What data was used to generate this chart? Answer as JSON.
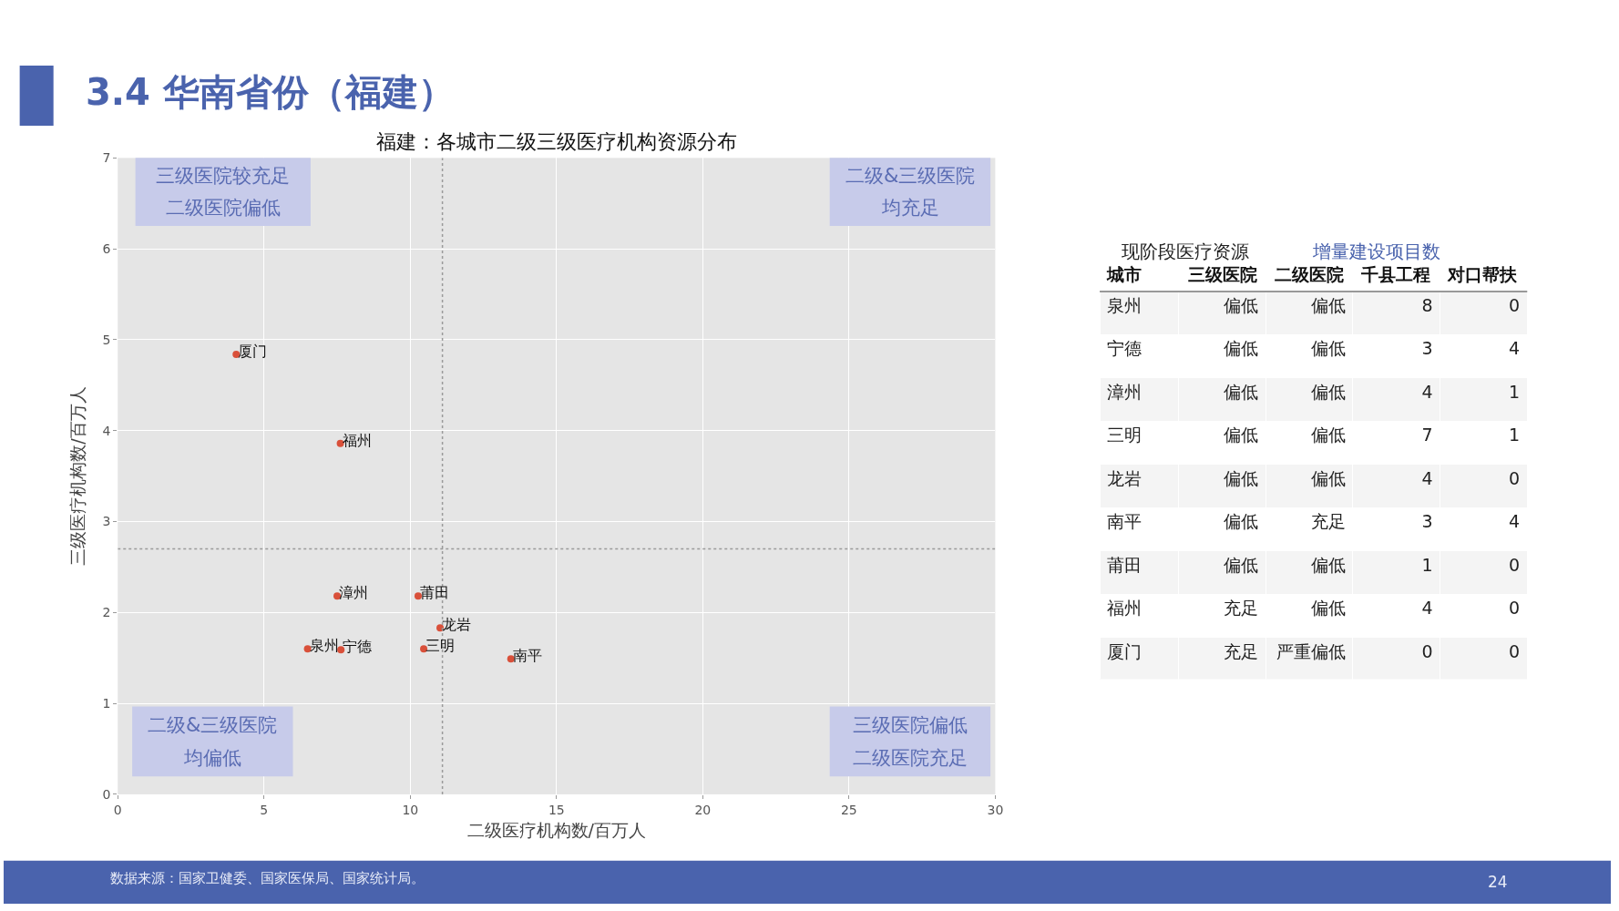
{
  "chart_data": [
    {
      "type": "scatter",
      "title": "福建：各城市二级三级医疗机构资源分布",
      "xlabel": "二级医疗机构数/百万人",
      "ylabel": "三级医疗机构数/百万人",
      "x": [
        4.05,
        7.61,
        7.5,
        10.27,
        11.02,
        6.49,
        7.63,
        10.46,
        13.44
      ],
      "series": [
        {
          "color": "#d9503a",
          "values": [
            4.84,
            3.86,
            2.18,
            2.18,
            1.83,
            1.6,
            1.59,
            1.6,
            1.49
          ]
        }
      ],
      "marker": "circle",
      "xlim": [
        0,
        30
      ],
      "ylim": [
        0,
        7
      ],
      "xticks": [
        0,
        5,
        10,
        15,
        20,
        25,
        30
      ],
      "yticks": [
        0,
        1,
        2,
        3,
        4,
        5,
        6,
        7
      ],
      "grid": true,
      "ref_lines": [
        {
          "axis": "x",
          "value": 11.1,
          "color": "#9a9a9a",
          "line_style": "dotted"
        },
        {
          "axis": "y",
          "value": 2.7,
          "color": "#9a9a9a",
          "line_style": "dotted"
        }
      ],
      "annotations": [
        {
          "text": "厦门",
          "x": 4.05,
          "y": 4.84
        },
        {
          "text": "福州",
          "x": 7.61,
          "y": 3.86
        },
        {
          "text": "漳州",
          "x": 7.5,
          "y": 2.18
        },
        {
          "text": "莆田",
          "x": 10.27,
          "y": 2.18
        },
        {
          "text": "龙岩",
          "x": 11.02,
          "y": 1.83
        },
        {
          "text": "泉州",
          "x": 6.49,
          "y": 1.6
        },
        {
          "text": "宁德",
          "x": 7.63,
          "y": 1.59
        },
        {
          "text": "三明",
          "x": 10.46,
          "y": 1.6
        },
        {
          "text": "南平",
          "x": 13.44,
          "y": 1.49
        },
        "三级医院较充足",
        "二级医院偏低",
        "二级&三级医院",
        "均充足",
        "二级&三级医院",
        "均偏低",
        "三级医院偏低",
        "二级医院充足",
        "3.4 华南省份（福建）",
        "数据来源：国家卫健委、国家医保局、国家统计局。",
        "24"
      ]
    },
    {
      "type": "other",
      "categories": [
        "城市",
        "三级医院",
        "二级医院",
        "千县工程",
        "对口帮扶"
      ],
      "annotations": [
        "现阶段医疗资源",
        "增量建设项目数"
      ],
      "cell_labels": [
        [
          "泉州",
          "偏低",
          "偏低",
          "8",
          "0"
        ],
        [
          "宁德",
          "偏低",
          "偏低",
          "3",
          "4"
        ],
        [
          "漳州",
          "偏低",
          "偏低",
          "4",
          "1"
        ],
        [
          "三明",
          "偏低",
          "偏低",
          "7",
          "1"
        ],
        [
          "龙岩",
          "偏低",
          "偏低",
          "4",
          "0"
        ],
        [
          "南平",
          "偏低",
          "充足",
          "3",
          "4"
        ],
        [
          "莆田",
          "偏低",
          "偏低",
          "1",
          "0"
        ],
        [
          "福州",
          "充足",
          "偏低",
          "4",
          "0"
        ],
        [
          "厦门",
          "充足",
          "严重偏低",
          "0",
          "0"
        ]
      ]
    }
  ]
}
